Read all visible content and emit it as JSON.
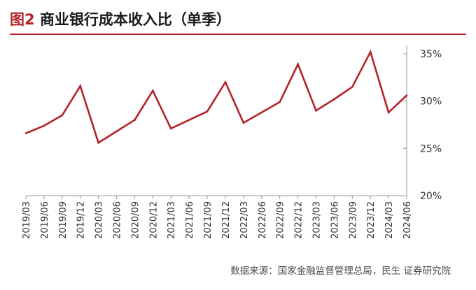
{
  "title": {
    "figure_label": "图2",
    "text": "商业银行成本收入比（单季）"
  },
  "source": "数据来源：国家金融监督管理总局，民生 证券研究院",
  "colors": {
    "line": "#b4232a",
    "axis": "#999999",
    "text": "#333333"
  },
  "chart_data": {
    "type": "line",
    "title": "商业银行成本收入比（单季）",
    "xlabel": "",
    "ylabel": "",
    "y_axis_side": "right",
    "y_format": "percent",
    "ylim": [
      20,
      35
    ],
    "yticks": [
      20,
      25,
      30,
      35
    ],
    "ytick_labels": [
      "20%",
      "25%",
      "30%",
      "35%"
    ],
    "grid": false,
    "legend": "none",
    "x": [
      "2019/03",
      "2019/06",
      "2019/09",
      "2019/12",
      "2020/03",
      "2020/06",
      "2020/09",
      "2020/12",
      "2021/03",
      "2021/06",
      "2021/09",
      "2021/12",
      "2022/03",
      "2022/06",
      "2022/09",
      "2022/12",
      "2023/03",
      "2023/06",
      "2023/09",
      "2023/12",
      "2024/03",
      "2024/06"
    ],
    "series": [
      {
        "name": "",
        "color": "#b4232a",
        "values": [
          26.6,
          27.4,
          28.5,
          31.6,
          25.6,
          26.8,
          28.0,
          31.1,
          27.1,
          28.0,
          28.9,
          32.0,
          27.7,
          28.8,
          29.9,
          33.9,
          29.0,
          30.2,
          31.5,
          35.2,
          28.8,
          30.6
        ]
      }
    ]
  }
}
